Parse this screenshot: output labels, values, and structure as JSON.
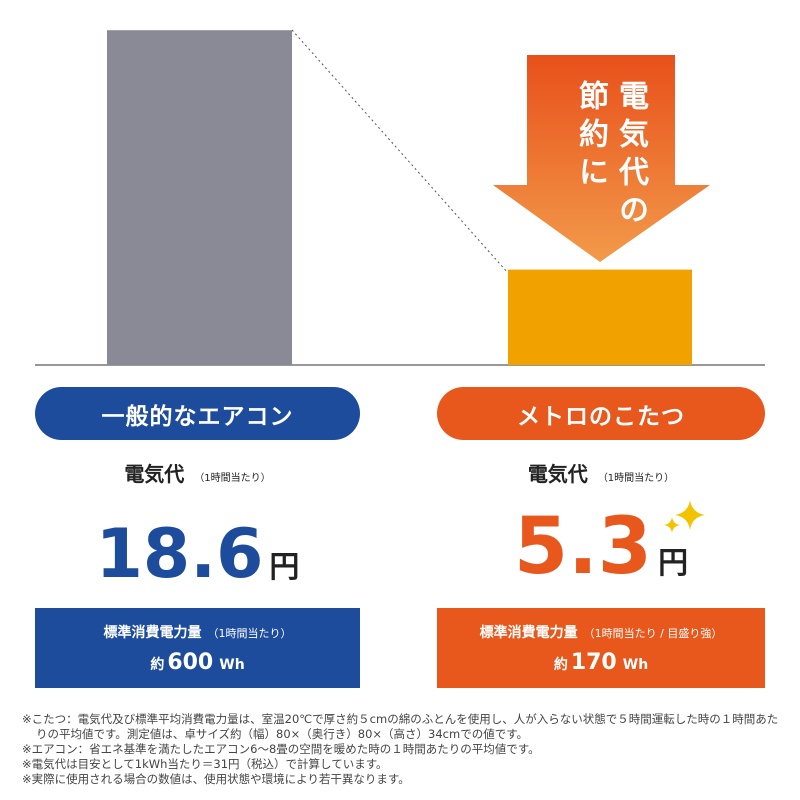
{
  "arrow_text": [
    "電気代の",
    "節約に"
  ],
  "items": [
    {
      "label": "一般的なエアコン",
      "cost_label": "電気代",
      "cost_note": "（1時間当たり）",
      "cost": 18.6,
      "unit": "円",
      "power_title": "標準消費電力量",
      "power_note": "（1時間当たり）",
      "power_prefix": "約",
      "power": 600,
      "power_unit": "Wh",
      "color": "#1d4c9c",
      "bar_color": "#8a8a96"
    },
    {
      "label": "メトロのこたつ",
      "cost_label": "電気代",
      "cost_note": "（1時間当たり）",
      "cost": 5.3,
      "unit": "円",
      "power_title": "標準消費電力量",
      "power_note": "（1時間当たり / 目盛り強）",
      "power_prefix": "約",
      "power": 170,
      "power_unit": "Wh",
      "color": "#e8581c",
      "bar_color": "#f1a100"
    }
  ],
  "footnotes": [
    "※こたつ：電気代及び標準平均消費電力量は、室温20℃で厚さ約５cmの綿のふとんを使用し、人が入らない状態で５時間運転した時の１時間あたりの平均値です。測定値は、卓サイズ約（幅）80×（奥行き）80×（高さ）34cmでの値です。",
    "※エアコン：省エネ基準を満たしたエアコン6～8畳の空間を暖めた時の１時間あたりの平均値です。",
    "※電気代は目安として1kWh当たり＝31円（税込）で計算しています。",
    "※実際に使用される場合の数値は、使用状態や環境により若干異なります。"
  ]
}
